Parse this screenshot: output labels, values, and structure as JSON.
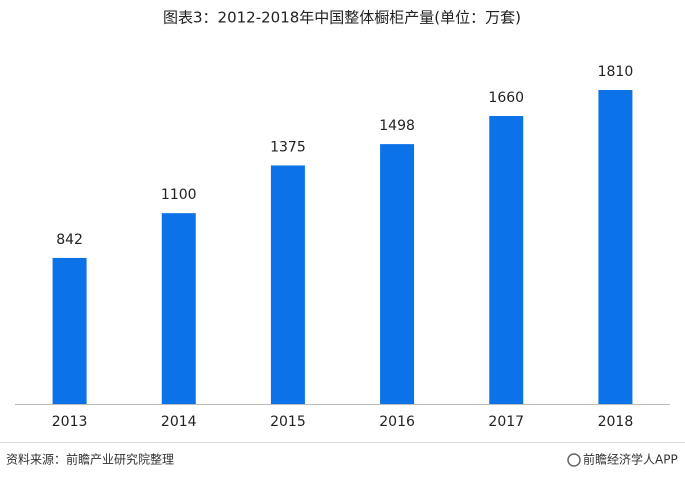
{
  "chart_data": {
    "type": "bar",
    "title": "图表3：2012-2018年中国整体橱柜产量(单位：万套)",
    "categories": [
      "2013",
      "2014",
      "2015",
      "2016",
      "2017",
      "2018"
    ],
    "values": [
      842,
      1100,
      1375,
      1498,
      1660,
      1810
    ],
    "color": "#0b72e7",
    "source": "资料来源：前瞻产业研究院整理",
    "brand": "前瞻经济学人APP"
  }
}
